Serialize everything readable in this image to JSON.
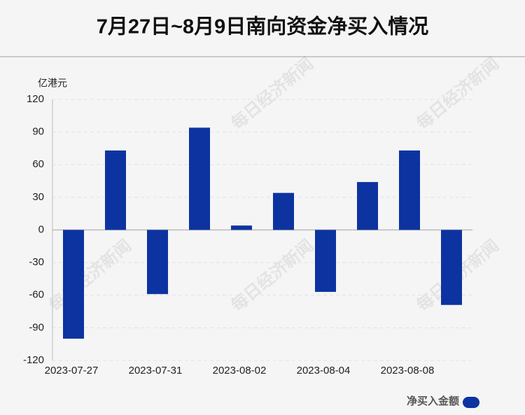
{
  "chart_data": {
    "type": "bar",
    "title": "7月27日~8月9日南向资金净买入情况",
    "y_label": "亿港元",
    "watermark": "每日经济新闻",
    "categories": [
      "2023-07-27",
      null,
      "2023-07-31",
      null,
      "2023-08-02",
      null,
      "2023-08-04",
      null,
      "2023-08-08",
      null
    ],
    "series": [
      {
        "name": "净买入金额",
        "color": "#0d33a0",
        "values": [
          -100,
          73,
          -59,
          94,
          4,
          34,
          -57,
          44,
          73,
          -69
        ]
      }
    ],
    "ylim": [
      -120,
      120
    ],
    "yticks": [
      120,
      90,
      60,
      30,
      0,
      -30,
      -60,
      -90,
      -120
    ],
    "grid": true,
    "legend": "bottom-right"
  }
}
